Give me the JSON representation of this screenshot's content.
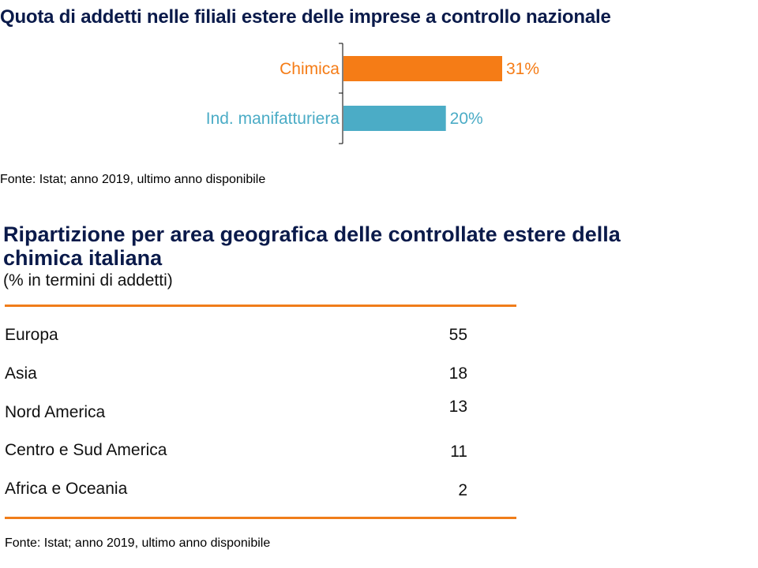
{
  "title": "Quota di addetti nelle filiali estere delle imprese a controllo nazionale",
  "chart_data": {
    "type": "bar",
    "orientation": "horizontal",
    "categories": [
      "Chimica",
      "Ind. manifatturiera"
    ],
    "values": [
      31,
      20
    ],
    "value_suffix": "%",
    "colors": [
      "#f57c16",
      "#4bacc6"
    ],
    "xlim": [
      0,
      50
    ]
  },
  "source_top": "Fonte: Istat; anno 2019, ultimo anno disponibile",
  "table": {
    "title": "Ripartizione per area geografica delle controllate estere della chimica italiana",
    "subtitle": "(% in termini di addetti)",
    "rows": [
      {
        "label": "Europa",
        "value": "55"
      },
      {
        "label": "Asia",
        "value": "18"
      },
      {
        "label": "Nord America",
        "value": "13"
      },
      {
        "label": "Centro e Sud America",
        "value": "11"
      },
      {
        "label": "Africa e Oceania",
        "value": "2"
      }
    ],
    "rule_color": "#f07d1a"
  },
  "source_bottom": "Fonte: Istat; anno 2019, ultimo anno disponibile"
}
